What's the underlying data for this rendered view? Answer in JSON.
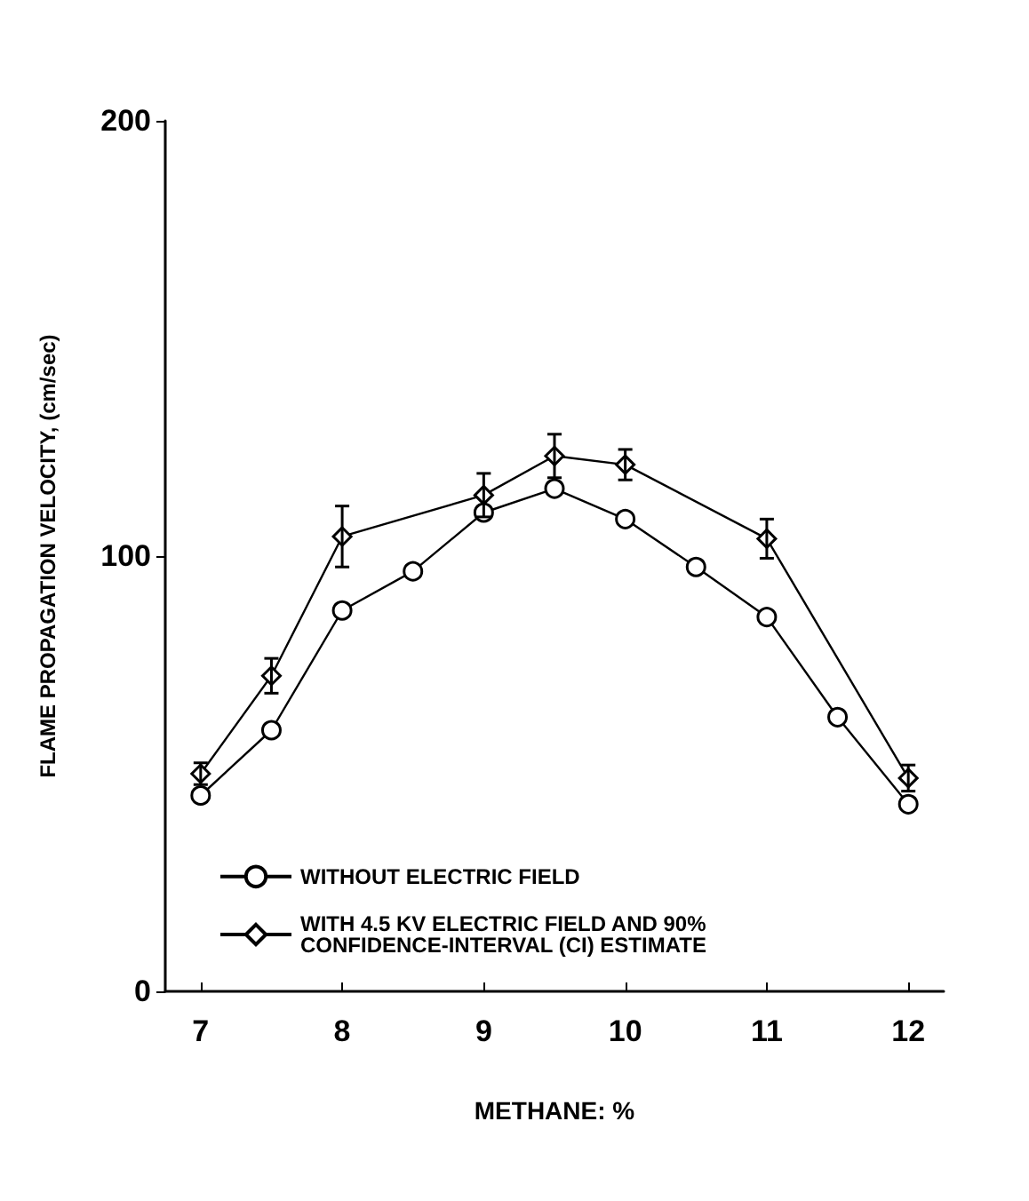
{
  "chart_data": {
    "type": "line",
    "xlabel": "METHANE: %",
    "ylabel": "FLAME PROPAGATION VELOCITY, (cm/sec)",
    "xlim": [
      6.75,
      12.25
    ],
    "xticks": [
      7,
      8,
      9,
      10,
      11,
      12
    ],
    "ylim": [
      0,
      200
    ],
    "yticks": [
      0,
      100,
      200
    ],
    "grid": false,
    "legend": "bottom left",
    "line_style": "solid",
    "series": [
      {
        "name": "WITHOUT ELECTRIC FIELD",
        "color": "#000000",
        "marker": "circle",
        "x": [
          7,
          7.5,
          8,
          8.5,
          9,
          9.5,
          10,
          10.5,
          11,
          11.5,
          12
        ],
        "values": [
          45,
          60,
          87.5,
          96.5,
          110,
          115.5,
          108.5,
          97.5,
          86,
          63,
          43
        ]
      },
      {
        "name": "WITH 4.5 KV ELECTRIC FIELD AND 90% CONFIDENCE-INTERVAL (CI) ESTIMATE",
        "color": "#000000",
        "marker": "diamond",
        "x": [
          7,
          7.5,
          8,
          9,
          9.5,
          10,
          11,
          12
        ],
        "values": [
          50,
          72.5,
          104.5,
          114,
          123,
          121,
          104,
          49
        ],
        "errors": [
          2.5,
          4,
          7,
          5,
          5,
          3.5,
          4.5,
          3
        ]
      }
    ]
  }
}
